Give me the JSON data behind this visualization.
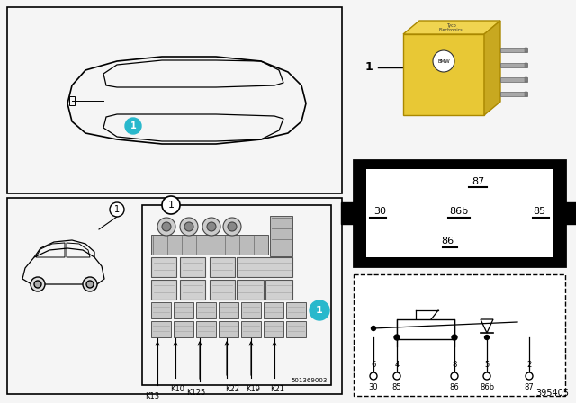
{
  "bg_color": "#f5f5f5",
  "border_color": "#000000",
  "teal_color": "#29b8cc",
  "relay_yellow": "#e8c835",
  "relay_yellow_top": "#f0d450",
  "relay_yellow_side": "#c8a820",
  "pin_metal": "#a8a8a8",
  "fuse_gray": "#c8c8c8",
  "fuse_dark": "#909090",
  "part_number": "501369003",
  "doc_number": "395405",
  "k_labels": [
    "K13",
    "K10",
    "K125",
    "K22",
    "K19",
    "K21"
  ],
  "pin_top_nums": [
    "6",
    "4",
    "8",
    "5",
    "2"
  ],
  "pin_bot_labels": [
    "30",
    "85",
    "86",
    "86b",
    "87"
  ],
  "bb_pin_top": "87",
  "bb_pin_mid": [
    "30",
    "86b",
    "85"
  ],
  "bb_pin_bot": "86"
}
